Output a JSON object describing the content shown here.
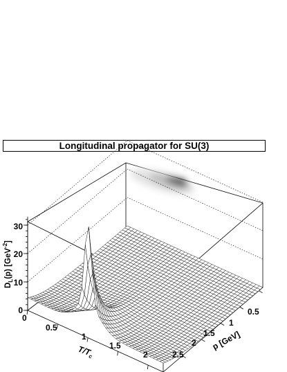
{
  "chart_data": {
    "type": "surface3d",
    "title": "Longitudinal propagator for SU(3)",
    "zlabel_main": "D",
    "zlabel_sub": "L",
    "zlabel_rest": "(p) [GeV",
    "zlabel_sup": "-2",
    "zlabel_close": "]",
    "xlabel_main": "T/T",
    "xlabel_sub": "c",
    "ylabel": "p [GeV]",
    "x_range": [
      0,
      2.25
    ],
    "y_range": [
      0,
      2.6
    ],
    "z_range": [
      0,
      33
    ],
    "x_ticks": [
      "0",
      "0.5",
      "1",
      "1.5",
      "2"
    ],
    "x_tick_values": [
      0,
      0.5,
      1,
      1.5,
      2
    ],
    "y_ticks": [
      "0.5",
      "1",
      "1.5",
      "2",
      "2.5"
    ],
    "y_tick_values": [
      0.5,
      1,
      1.5,
      2,
      2.5
    ],
    "z_ticks": [
      "0",
      "10",
      "20",
      "30"
    ],
    "z_tick_values": [
      0,
      10,
      20,
      30
    ],
    "peak": {
      "T_over_Tc": 1.0,
      "p": 0.05,
      "D": 32
    },
    "grid": "dotted",
    "projection": "grayscale contour on top plane"
  }
}
